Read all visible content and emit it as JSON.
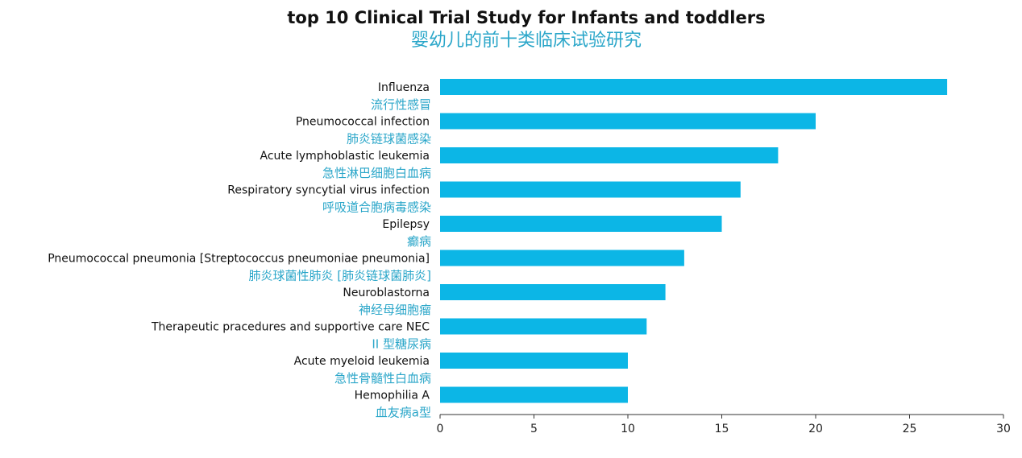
{
  "title": "top 10 Clinical Trial Study for Infants and toddlers",
  "subtitle": "婴幼儿的前十类临床试验研究",
  "colors": {
    "bar": "#0cb6e6",
    "cn_label": "#2aa6c9",
    "axis": "#333333"
  },
  "chart_data": {
    "type": "bar",
    "orientation": "horizontal",
    "categories": [
      "Influenza",
      "Pneumococcal infection",
      "Acute lymphoblastic leukemia",
      "Respiratory syncytial virus infection",
      "Epilepsy",
      "Pneumococcal pneumonia [Streptococcus pneumoniae pneumonia]",
      "Neuroblastorna",
      "Therapeutic pracedures and supportive care NEC",
      "Acute myeloid leukemia",
      "Hemophilia A"
    ],
    "categories_cn": [
      "流行性感冒",
      "肺炎链球菌感染",
      "急性淋巴细胞白血病",
      "呼吸道合胞病毒感染",
      "癫病",
      "肺炎球菌性肺炎 [肺炎链球菌肺炎]",
      "神经母细胞瘤",
      "II 型糖尿病",
      "急性骨髓性白血病",
      "血友病a型"
    ],
    "values": [
      27,
      20,
      18,
      16,
      15,
      13,
      12,
      11,
      10,
      10
    ],
    "xlim": [
      0,
      30
    ],
    "xticks": [
      "0",
      "5",
      "10",
      "15",
      "20",
      "25",
      "30"
    ],
    "grid": false,
    "legend": "none"
  }
}
